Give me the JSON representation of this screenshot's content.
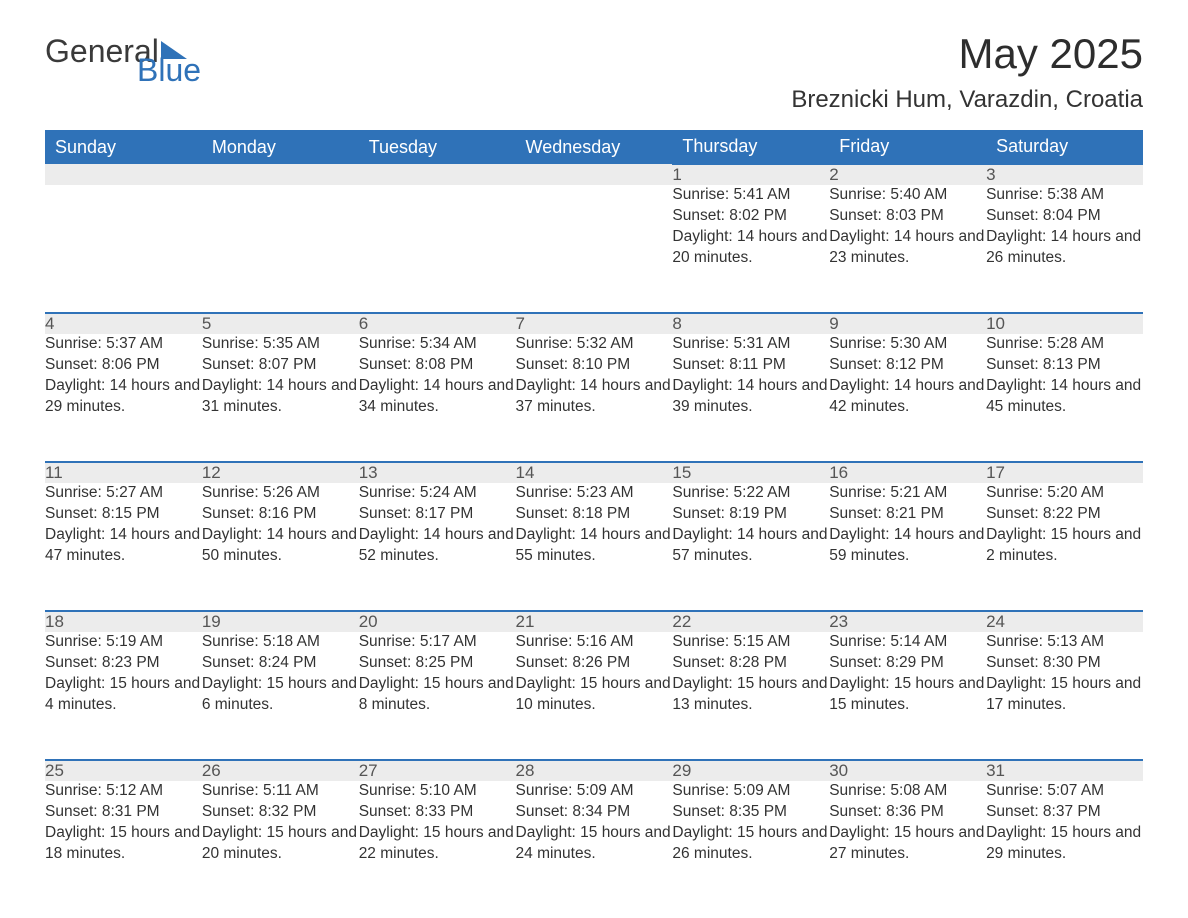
{
  "brand": {
    "part1": "General",
    "part2": "Blue"
  },
  "title": "May 2025",
  "subtitle": "Breznicki Hum, Varazdin, Croatia",
  "colors": {
    "header_bg": "#2f72b8",
    "header_text": "#ffffff",
    "daynum_bg": "#ececec",
    "daynum_border": "#2f72b8",
    "body_text": "#333333",
    "logo_gray": "#3a3a3a",
    "logo_blue": "#2f72b8",
    "background": "#ffffff"
  },
  "weekdays": [
    "Sunday",
    "Monday",
    "Tuesday",
    "Wednesday",
    "Thursday",
    "Friday",
    "Saturday"
  ],
  "labels": {
    "sunrise": "Sunrise",
    "sunset": "Sunset",
    "daylight": "Daylight"
  },
  "weeks": [
    [
      null,
      null,
      null,
      null,
      {
        "n": "1",
        "sunrise": "5:41 AM",
        "sunset": "8:02 PM",
        "day_h": 14,
        "day_m": 20
      },
      {
        "n": "2",
        "sunrise": "5:40 AM",
        "sunset": "8:03 PM",
        "day_h": 14,
        "day_m": 23
      },
      {
        "n": "3",
        "sunrise": "5:38 AM",
        "sunset": "8:04 PM",
        "day_h": 14,
        "day_m": 26
      }
    ],
    [
      {
        "n": "4",
        "sunrise": "5:37 AM",
        "sunset": "8:06 PM",
        "day_h": 14,
        "day_m": 29
      },
      {
        "n": "5",
        "sunrise": "5:35 AM",
        "sunset": "8:07 PM",
        "day_h": 14,
        "day_m": 31
      },
      {
        "n": "6",
        "sunrise": "5:34 AM",
        "sunset": "8:08 PM",
        "day_h": 14,
        "day_m": 34
      },
      {
        "n": "7",
        "sunrise": "5:32 AM",
        "sunset": "8:10 PM",
        "day_h": 14,
        "day_m": 37
      },
      {
        "n": "8",
        "sunrise": "5:31 AM",
        "sunset": "8:11 PM",
        "day_h": 14,
        "day_m": 39
      },
      {
        "n": "9",
        "sunrise": "5:30 AM",
        "sunset": "8:12 PM",
        "day_h": 14,
        "day_m": 42
      },
      {
        "n": "10",
        "sunrise": "5:28 AM",
        "sunset": "8:13 PM",
        "day_h": 14,
        "day_m": 45
      }
    ],
    [
      {
        "n": "11",
        "sunrise": "5:27 AM",
        "sunset": "8:15 PM",
        "day_h": 14,
        "day_m": 47
      },
      {
        "n": "12",
        "sunrise": "5:26 AM",
        "sunset": "8:16 PM",
        "day_h": 14,
        "day_m": 50
      },
      {
        "n": "13",
        "sunrise": "5:24 AM",
        "sunset": "8:17 PM",
        "day_h": 14,
        "day_m": 52
      },
      {
        "n": "14",
        "sunrise": "5:23 AM",
        "sunset": "8:18 PM",
        "day_h": 14,
        "day_m": 55
      },
      {
        "n": "15",
        "sunrise": "5:22 AM",
        "sunset": "8:19 PM",
        "day_h": 14,
        "day_m": 57
      },
      {
        "n": "16",
        "sunrise": "5:21 AM",
        "sunset": "8:21 PM",
        "day_h": 14,
        "day_m": 59
      },
      {
        "n": "17",
        "sunrise": "5:20 AM",
        "sunset": "8:22 PM",
        "day_h": 15,
        "day_m": 2
      }
    ],
    [
      {
        "n": "18",
        "sunrise": "5:19 AM",
        "sunset": "8:23 PM",
        "day_h": 15,
        "day_m": 4
      },
      {
        "n": "19",
        "sunrise": "5:18 AM",
        "sunset": "8:24 PM",
        "day_h": 15,
        "day_m": 6
      },
      {
        "n": "20",
        "sunrise": "5:17 AM",
        "sunset": "8:25 PM",
        "day_h": 15,
        "day_m": 8
      },
      {
        "n": "21",
        "sunrise": "5:16 AM",
        "sunset": "8:26 PM",
        "day_h": 15,
        "day_m": 10
      },
      {
        "n": "22",
        "sunrise": "5:15 AM",
        "sunset": "8:28 PM",
        "day_h": 15,
        "day_m": 13
      },
      {
        "n": "23",
        "sunrise": "5:14 AM",
        "sunset": "8:29 PM",
        "day_h": 15,
        "day_m": 15
      },
      {
        "n": "24",
        "sunrise": "5:13 AM",
        "sunset": "8:30 PM",
        "day_h": 15,
        "day_m": 17
      }
    ],
    [
      {
        "n": "25",
        "sunrise": "5:12 AM",
        "sunset": "8:31 PM",
        "day_h": 15,
        "day_m": 18
      },
      {
        "n": "26",
        "sunrise": "5:11 AM",
        "sunset": "8:32 PM",
        "day_h": 15,
        "day_m": 20
      },
      {
        "n": "27",
        "sunrise": "5:10 AM",
        "sunset": "8:33 PM",
        "day_h": 15,
        "day_m": 22
      },
      {
        "n": "28",
        "sunrise": "5:09 AM",
        "sunset": "8:34 PM",
        "day_h": 15,
        "day_m": 24
      },
      {
        "n": "29",
        "sunrise": "5:09 AM",
        "sunset": "8:35 PM",
        "day_h": 15,
        "day_m": 26
      },
      {
        "n": "30",
        "sunrise": "5:08 AM",
        "sunset": "8:36 PM",
        "day_h": 15,
        "day_m": 27
      },
      {
        "n": "31",
        "sunrise": "5:07 AM",
        "sunset": "8:37 PM",
        "day_h": 15,
        "day_m": 29
      }
    ]
  ]
}
